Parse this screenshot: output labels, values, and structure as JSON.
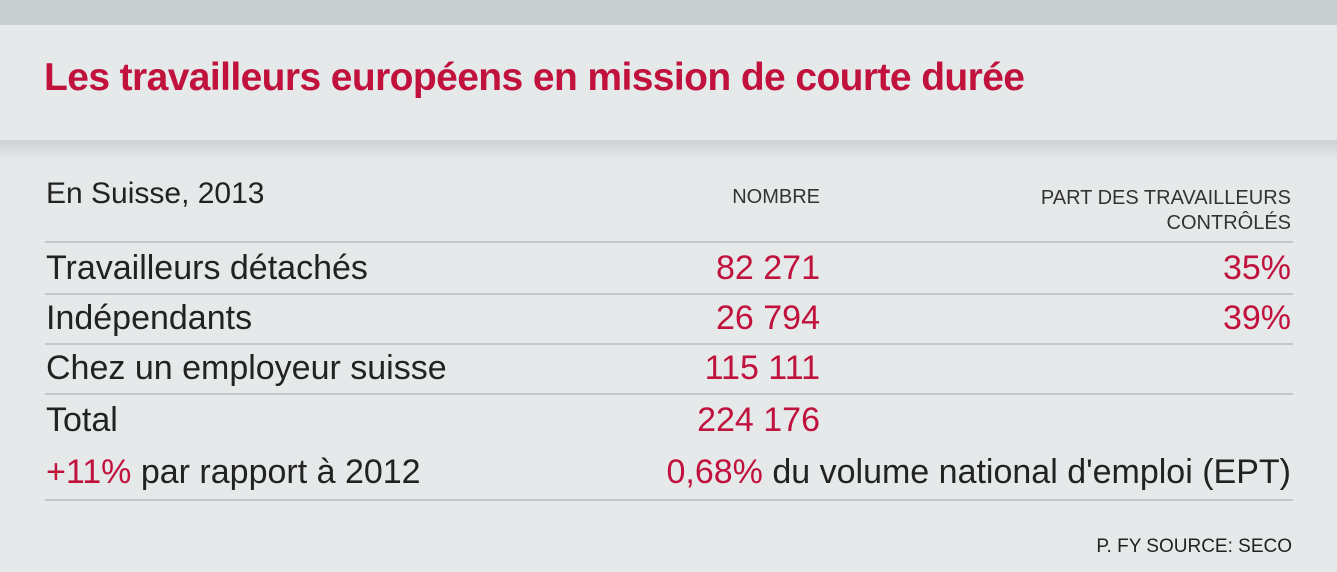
{
  "title": "Les travailleurs européens en mission de courte durée",
  "chart_data": {
    "type": "table",
    "title": "Les travailleurs européens en mission de courte durée",
    "subtitle": "En Suisse, 2013",
    "columns": [
      "NOMBRE",
      "PART DES TRAVAILLEURS CONTRÔLÉS"
    ],
    "column_part_lines": [
      "PART DES TRAVAILLEURS",
      "CONTRÔLÉS"
    ],
    "rows": [
      {
        "label": "Travailleurs détachés",
        "nombre": "82 271",
        "part": "35%"
      },
      {
        "label": "Indépendants",
        "nombre": "26 794",
        "part": "39%"
      },
      {
        "label": "Chez un employeur suisse",
        "nombre": "115 111",
        "part": ""
      },
      {
        "label": "Total",
        "nombre": "224 176",
        "part": ""
      }
    ],
    "notes": {
      "growth_value": "+11%",
      "growth_text": " par rapport à 2012",
      "share_value": "0,68%",
      "share_text": " du volume national d'emploi (EPT)"
    }
  },
  "source": "P. FY SOURCE: SECO",
  "colors": {
    "accent": "#c0123d",
    "background": "#e6e9ea",
    "text": "#222222",
    "rule": "#c3c7c9"
  }
}
